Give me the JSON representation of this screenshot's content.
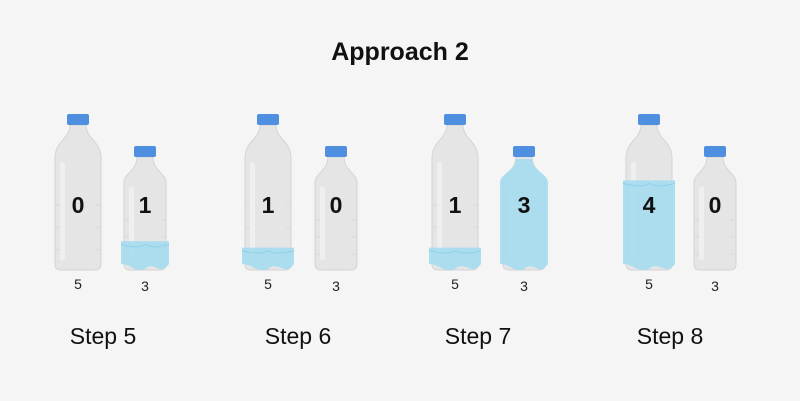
{
  "title": "Approach 2",
  "colors": {
    "background": "#f5f5f5",
    "bottle_body": "#e5e5e5",
    "bottle_edge": "#d4d4d4",
    "cap": "#4f8fe0",
    "water": "#a8dcef"
  },
  "steps": [
    {
      "label": "Step 5",
      "bottles": [
        {
          "volume": 0,
          "capacity": 5,
          "volume_text": "0",
          "capacity_text": "5",
          "fill_fraction": 0.0
        },
        {
          "volume": 1,
          "capacity": 3,
          "volume_text": "1",
          "capacity_text": "3",
          "fill_fraction": 0.33
        }
      ]
    },
    {
      "label": "Step 6",
      "bottles": [
        {
          "volume": 1,
          "capacity": 5,
          "volume_text": "1",
          "capacity_text": "5",
          "fill_fraction": 0.2
        },
        {
          "volume": 0,
          "capacity": 3,
          "volume_text": "0",
          "capacity_text": "3",
          "fill_fraction": 0.0
        }
      ]
    },
    {
      "label": "Step 7",
      "bottles": [
        {
          "volume": 1,
          "capacity": 5,
          "volume_text": "1",
          "capacity_text": "5",
          "fill_fraction": 0.2
        },
        {
          "volume": 3,
          "capacity": 3,
          "volume_text": "3",
          "capacity_text": "3",
          "fill_fraction": 1.0
        }
      ]
    },
    {
      "label": "Step 8",
      "bottles": [
        {
          "volume": 4,
          "capacity": 5,
          "volume_text": "4",
          "capacity_text": "5",
          "fill_fraction": 0.8
        },
        {
          "volume": 0,
          "capacity": 3,
          "volume_text": "0",
          "capacity_text": "3",
          "fill_fraction": 0.0
        }
      ]
    }
  ]
}
